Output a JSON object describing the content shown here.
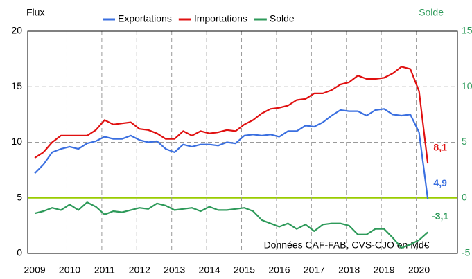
{
  "chart_data": {
    "type": "line",
    "y_axis_label": "Flux",
    "y2_axis_label": "Solde",
    "annotation": "Données CAF-FAB, CVS-CJO en Md€",
    "x": [
      2009,
      2009.25,
      2009.5,
      2009.75,
      2010,
      2010.25,
      2010.5,
      2010.75,
      2011,
      2011.25,
      2011.5,
      2011.75,
      2012,
      2012.25,
      2012.5,
      2012.75,
      2013,
      2013.25,
      2013.5,
      2013.75,
      2014,
      2014.25,
      2014.5,
      2014.75,
      2015,
      2015.25,
      2015.5,
      2015.75,
      2016,
      2016.25,
      2016.5,
      2016.75,
      2017,
      2017.25,
      2017.5,
      2017.75,
      2018,
      2018.25,
      2018.5,
      2018.75,
      2019,
      2019.25,
      2019.5,
      2019.75,
      2020,
      2020.25
    ],
    "series": [
      {
        "name": "Exportations",
        "color": "#3a6fe0",
        "values": [
          7.2,
          8.0,
          9.1,
          9.4,
          9.6,
          9.4,
          9.9,
          10.1,
          10.5,
          10.3,
          10.3,
          10.6,
          10.2,
          10.0,
          10.1,
          9.4,
          9.1,
          9.8,
          9.6,
          9.8,
          9.8,
          9.7,
          10.0,
          9.9,
          10.6,
          10.7,
          10.6,
          10.7,
          10.5,
          11.0,
          11.0,
          11.5,
          11.4,
          11.8,
          12.4,
          12.9,
          12.8,
          12.8,
          12.4,
          12.9,
          13.0,
          12.5,
          12.4,
          12.5,
          10.9,
          4.9
        ],
        "value_labels": [
          null,
          null,
          null,
          null,
          null,
          null,
          null,
          null,
          null,
          null,
          null,
          null,
          null,
          null,
          null,
          null,
          null,
          null,
          null,
          null,
          null,
          null,
          null,
          null,
          null,
          null,
          null,
          null,
          null,
          null,
          null,
          null,
          null,
          null,
          null,
          null,
          null,
          null,
          null,
          null,
          null,
          null,
          null,
          null,
          null,
          "4,9"
        ]
      },
      {
        "name": "Importations",
        "color": "#e01010",
        "values": [
          8.6,
          9.1,
          10.0,
          10.6,
          10.6,
          10.6,
          10.6,
          11.1,
          12.0,
          11.6,
          11.7,
          11.8,
          11.2,
          11.1,
          10.8,
          10.3,
          10.3,
          11.0,
          10.6,
          11.0,
          10.8,
          10.9,
          11.1,
          11.0,
          11.6,
          12.0,
          12.6,
          13.0,
          13.1,
          13.3,
          13.8,
          13.9,
          14.4,
          14.4,
          14.7,
          15.2,
          15.4,
          16.0,
          15.7,
          15.7,
          15.8,
          16.2,
          16.8,
          16.6,
          14.6,
          8.1
        ],
        "value_labels": [
          null,
          null,
          null,
          null,
          null,
          null,
          null,
          null,
          null,
          null,
          null,
          null,
          null,
          null,
          null,
          null,
          null,
          null,
          null,
          null,
          null,
          null,
          null,
          null,
          null,
          null,
          null,
          null,
          null,
          null,
          null,
          null,
          null,
          null,
          null,
          null,
          null,
          null,
          null,
          null,
          null,
          null,
          null,
          null,
          null,
          "8,1"
        ]
      },
      {
        "name": "Solde",
        "color": "#2e9a5a",
        "axis": "y2",
        "values": [
          -1.4,
          -1.2,
          -0.9,
          -1.1,
          -0.6,
          -1.1,
          -0.4,
          -0.8,
          -1.5,
          -1.2,
          -1.3,
          -1.1,
          -0.9,
          -1.0,
          -0.5,
          -0.7,
          -1.1,
          -1.0,
          -0.9,
          -1.2,
          -0.8,
          -1.1,
          -1.1,
          -1.0,
          -0.9,
          -1.2,
          -2.0,
          -2.3,
          -2.6,
          -2.3,
          -2.8,
          -2.4,
          -3.0,
          -2.4,
          -2.3,
          -2.3,
          -2.5,
          -3.3,
          -3.3,
          -2.8,
          -2.8,
          -3.6,
          -4.5,
          -4.2,
          -3.8,
          -3.1
        ],
        "value_labels": [
          null,
          null,
          null,
          null,
          null,
          null,
          null,
          null,
          null,
          null,
          null,
          null,
          null,
          null,
          null,
          null,
          null,
          null,
          null,
          null,
          null,
          null,
          null,
          null,
          null,
          null,
          null,
          null,
          null,
          null,
          null,
          null,
          null,
          null,
          null,
          null,
          null,
          null,
          null,
          null,
          null,
          null,
          null,
          null,
          null,
          "-3,1"
        ]
      }
    ],
    "xlim": [
      2008.8,
      2021.1
    ],
    "xticks": [
      2009,
      2010,
      2011,
      2012,
      2013,
      2014,
      2015,
      2016,
      2017,
      2018,
      2019,
      2020
    ],
    "ylim": [
      0,
      20
    ],
    "yticks": [
      0,
      5,
      10,
      15,
      20
    ],
    "y2lim": [
      -5,
      15
    ],
    "y2ticks": [
      -5,
      0,
      5,
      10,
      15
    ],
    "y2_zero_line_color": "#99cc00",
    "grid": true,
    "legend": "top"
  }
}
